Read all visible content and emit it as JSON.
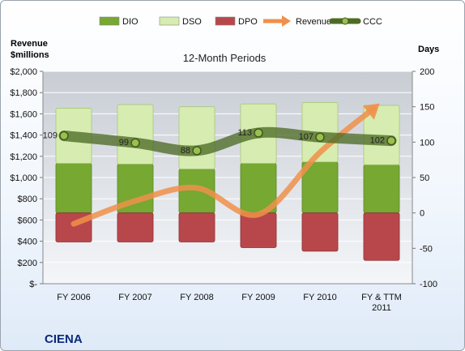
{
  "chart_data": {
    "type": "bar",
    "title": "12-Month Periods",
    "company": "CIENA",
    "left_axis": {
      "title_lines": [
        "Revenue",
        "$millions"
      ],
      "ylim": [
        0,
        2000
      ],
      "ticks": [
        0,
        200,
        400,
        600,
        800,
        1000,
        1200,
        1400,
        1600,
        1800,
        2000
      ],
      "tick_labels": [
        "$-",
        "$200",
        "$400",
        "$600",
        "$800",
        "$1,000",
        "$1,200",
        "$1,400",
        "$1,600",
        "$1,800",
        "$2,000"
      ]
    },
    "right_axis": {
      "title": "Days",
      "ylim": [
        -100,
        200
      ],
      "ticks": [
        -100,
        -50,
        0,
        50,
        100,
        150,
        200
      ],
      "tick_labels": [
        "-100",
        "-50",
        "0",
        "50",
        "100",
        "150",
        "200"
      ]
    },
    "categories": [
      [
        "FY 2006"
      ],
      [
        "FY 2007"
      ],
      [
        "FY 2008"
      ],
      [
        "FY 2009"
      ],
      [
        "FY 2010"
      ],
      [
        "FY & TTM",
        "2011"
      ]
    ],
    "grid": true,
    "legend_position": "top",
    "series": [
      {
        "name": "DIO",
        "kind": "stacked-bar",
        "axis": "right",
        "color": "#76a832",
        "values": [
          70,
          69,
          62,
          70,
          72,
          68
        ]
      },
      {
        "name": "DSO",
        "kind": "stacked-bar",
        "axis": "right",
        "color": "#d6ecb0",
        "values": [
          78,
          84,
          88,
          84,
          84,
          84
        ]
      },
      {
        "name": "DPO",
        "kind": "negative-bar",
        "axis": "right",
        "color": "#b8474b",
        "values": [
          -41,
          -41,
          -41,
          -49,
          -54,
          -67
        ]
      },
      {
        "name": "Revenue",
        "kind": "arrow-line",
        "axis": "left",
        "color": "#f0904a",
        "values": [
          564,
          780,
          902,
          653,
          1237,
          1710
        ]
      },
      {
        "name": "CCC",
        "kind": "line-markers",
        "axis": "right",
        "color": "#4e6b26",
        "values": [
          109,
          99,
          88,
          113,
          107,
          102
        ],
        "labels": [
          "109",
          "99",
          "88",
          "113",
          "107",
          "102"
        ]
      }
    ]
  }
}
